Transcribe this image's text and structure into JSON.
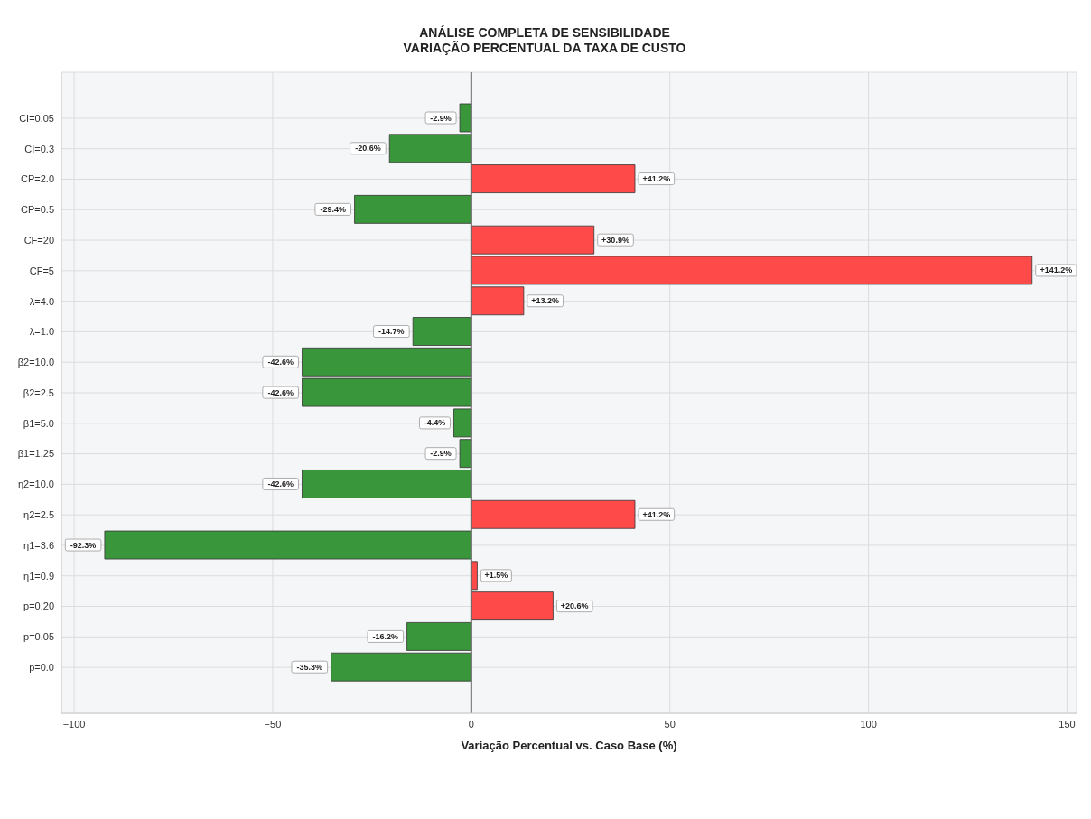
{
  "chart_data": {
    "type": "bar",
    "orientation": "horizontal",
    "title": "ANÁLISE COMPLETA DE SENSIBILIDADE\nVARIAÇÃO PERCENTUAL DA TAXA DE CUSTO",
    "xlabel": "Variação Percentual vs. Caso Base (%)",
    "categories": [
      "CI=0.05",
      "CI=0.3",
      "CP=2.0",
      "CP=0.5",
      "CF=20",
      "CF=5",
      "λ=4.0",
      "λ=1.0",
      "β2=10.0",
      "β2=2.5",
      "β1=5.0",
      "β1=1.25",
      "η2=10.0",
      "η2=2.5",
      "η1=3.6",
      "η1=0.9",
      "p=0.20",
      "p=0.05",
      "p=0.0"
    ],
    "values": [
      -2.9,
      -20.6,
      41.2,
      -29.4,
      30.9,
      141.2,
      13.2,
      -14.7,
      -42.6,
      -42.6,
      -4.4,
      -2.9,
      -42.6,
      41.2,
      -92.3,
      1.5,
      20.6,
      -16.2,
      -35.3
    ],
    "value_labels": [
      "-2.9%",
      "-20.6%",
      "+41.2%",
      "-29.4%",
      "+30.9%",
      "+141.2%",
      "+13.2%",
      "-14.7%",
      "-42.6%",
      "-42.6%",
      "-4.4%",
      "-2.9%",
      "-42.6%",
      "+41.2%",
      "-92.3%",
      "+1.5%",
      "+20.6%",
      "-16.2%",
      "-35.3%"
    ],
    "colors": [
      "#3a963a",
      "#3a963a",
      "#ff4a4a",
      "#3a963a",
      "#ff4a4a",
      "#ff4a4a",
      "#ff4a4a",
      "#3a963a",
      "#3a963a",
      "#3a963a",
      "#3a963a",
      "#3a963a",
      "#3a963a",
      "#ff4a4a",
      "#3a963a",
      "#ff4a4a",
      "#ff4a4a",
      "#3a963a",
      "#3a963a"
    ],
    "xlim": [
      -103.2,
      152.4
    ],
    "xticks": [
      {
        "value": -100,
        "label": "−100"
      },
      {
        "value": -50,
        "label": "−50"
      },
      0,
      50,
      100,
      150
    ],
    "ref_lines": [
      {
        "axis": "x",
        "value": 0,
        "color": "#6e6e6e"
      }
    ],
    "grid": true
  }
}
